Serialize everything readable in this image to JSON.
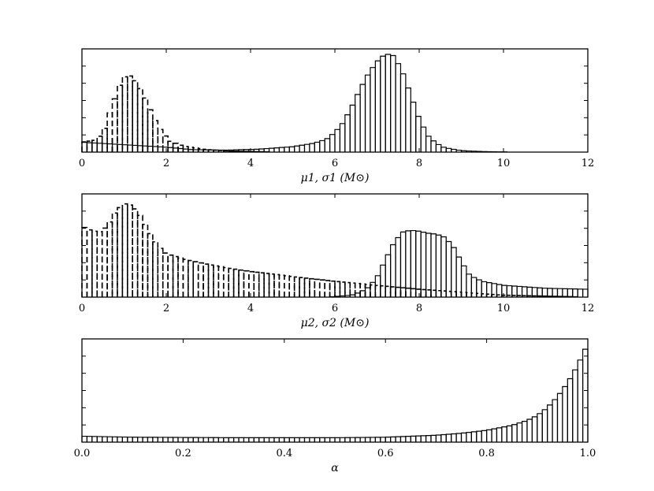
{
  "chart_data": [
    {
      "type": "bar",
      "xlabel": "μ1, σ1 (M⊙)",
      "xlim": [
        0,
        12
      ],
      "xticks": [
        "0",
        "2",
        "4",
        "6",
        "8",
        "10",
        "12"
      ],
      "ylim": [
        0,
        1.05
      ],
      "yticks_shown": false,
      "bin_width": 0.12,
      "series": [
        {
          "style": "solid",
          "points": [
            [
              0,
              0.1
            ],
            [
              2,
              0.05
            ],
            [
              2.6,
              0.025
            ],
            [
              3.4,
              0.02
            ],
            [
              4.2,
              0.03
            ],
            [
              5,
              0.055
            ],
            [
              5.5,
              0.09
            ],
            [
              5.8,
              0.13
            ],
            [
              6,
              0.2
            ],
            [
              6.2,
              0.3
            ],
            [
              6.4,
              0.46
            ],
            [
              6.6,
              0.64
            ],
            [
              6.8,
              0.8
            ],
            [
              7.0,
              0.92
            ],
            [
              7.2,
              1.0
            ],
            [
              7.4,
              0.98
            ],
            [
              7.6,
              0.82
            ],
            [
              7.8,
              0.58
            ],
            [
              8.0,
              0.34
            ],
            [
              8.2,
              0.17
            ],
            [
              8.4,
              0.09
            ],
            [
              8.6,
              0.045
            ],
            [
              9.0,
              0.015
            ],
            [
              9.6,
              0.004
            ],
            [
              10.5,
              0.0
            ],
            [
              12,
              0.0
            ]
          ]
        },
        {
          "style": "dashed",
          "points": [
            [
              0,
              0.1
            ],
            [
              0.3,
              0.12
            ],
            [
              0.5,
              0.19
            ],
            [
              0.7,
              0.45
            ],
            [
              0.9,
              0.68
            ],
            [
              1.0,
              0.76
            ],
            [
              1.1,
              0.79
            ],
            [
              1.3,
              0.71
            ],
            [
              1.5,
              0.55
            ],
            [
              1.7,
              0.35
            ],
            [
              1.9,
              0.2
            ],
            [
              2.1,
              0.11
            ],
            [
              2.4,
              0.06
            ],
            [
              3.0,
              0.025
            ],
            [
              3.5,
              0.01
            ],
            [
              4.5,
              0.002
            ],
            [
              5.5,
              0.0
            ],
            [
              12,
              0.0
            ]
          ]
        }
      ]
    },
    {
      "type": "bar",
      "xlabel": "μ2, σ2 (M⊙)",
      "xlim": [
        0,
        12
      ],
      "xticks": [
        "0",
        "2",
        "4",
        "6",
        "8",
        "10",
        "12"
      ],
      "ylim": [
        0,
        1.05
      ],
      "yticks_shown": false,
      "bin_width": 0.12,
      "series": [
        {
          "style": "solid",
          "points": [
            [
              0,
              0.0
            ],
            [
              5.8,
              0.0
            ],
            [
              6.4,
              0.02
            ],
            [
              6.6,
              0.05
            ],
            [
              6.8,
              0.1
            ],
            [
              7.0,
              0.2
            ],
            [
              7.2,
              0.38
            ],
            [
              7.4,
              0.55
            ],
            [
              7.6,
              0.66
            ],
            [
              7.8,
              0.68
            ],
            [
              8.0,
              0.67
            ],
            [
              8.2,
              0.65
            ],
            [
              8.4,
              0.64
            ],
            [
              8.6,
              0.61
            ],
            [
              8.8,
              0.52
            ],
            [
              9.0,
              0.36
            ],
            [
              9.2,
              0.22
            ],
            [
              9.5,
              0.16
            ],
            [
              10,
              0.12
            ],
            [
              11,
              0.09
            ],
            [
              12,
              0.08
            ]
          ]
        },
        {
          "style": "dashed",
          "points": [
            [
              0,
              0.72
            ],
            [
              0.2,
              0.68
            ],
            [
              0.4,
              0.66
            ],
            [
              0.6,
              0.72
            ],
            [
              0.8,
              0.87
            ],
            [
              1.0,
              0.95
            ],
            [
              1.2,
              0.93
            ],
            [
              1.4,
              0.82
            ],
            [
              1.6,
              0.66
            ],
            [
              1.8,
              0.52
            ],
            [
              2.0,
              0.44
            ],
            [
              2.4,
              0.39
            ],
            [
              3.0,
              0.33
            ],
            [
              4.0,
              0.26
            ],
            [
              5.0,
              0.21
            ],
            [
              6.0,
              0.16
            ],
            [
              7.0,
              0.12
            ],
            [
              8.0,
              0.08
            ],
            [
              9.0,
              0.05
            ],
            [
              10,
              0.02
            ],
            [
              11,
              0.01
            ],
            [
              12,
              0.0
            ]
          ]
        }
      ]
    },
    {
      "type": "bar",
      "xlabel": "α",
      "xlim": [
        0.0,
        1.0
      ],
      "xticks": [
        "0.0",
        "0.2",
        "0.4",
        "0.6",
        "0.8",
        "1.0"
      ],
      "ylim": [
        0,
        1.05
      ],
      "yticks_shown": false,
      "bin_width": 0.01,
      "series": [
        {
          "style": "solid",
          "points": [
            [
              0,
              0.06
            ],
            [
              0.1,
              0.05
            ],
            [
              0.3,
              0.045
            ],
            [
              0.5,
              0.045
            ],
            [
              0.6,
              0.05
            ],
            [
              0.7,
              0.07
            ],
            [
              0.75,
              0.09
            ],
            [
              0.8,
              0.12
            ],
            [
              0.85,
              0.17
            ],
            [
              0.88,
              0.22
            ],
            [
              0.9,
              0.27
            ],
            [
              0.92,
              0.35
            ],
            [
              0.94,
              0.46
            ],
            [
              0.96,
              0.6
            ],
            [
              0.98,
              0.78
            ],
            [
              1.0,
              1.0
            ]
          ]
        }
      ]
    }
  ]
}
